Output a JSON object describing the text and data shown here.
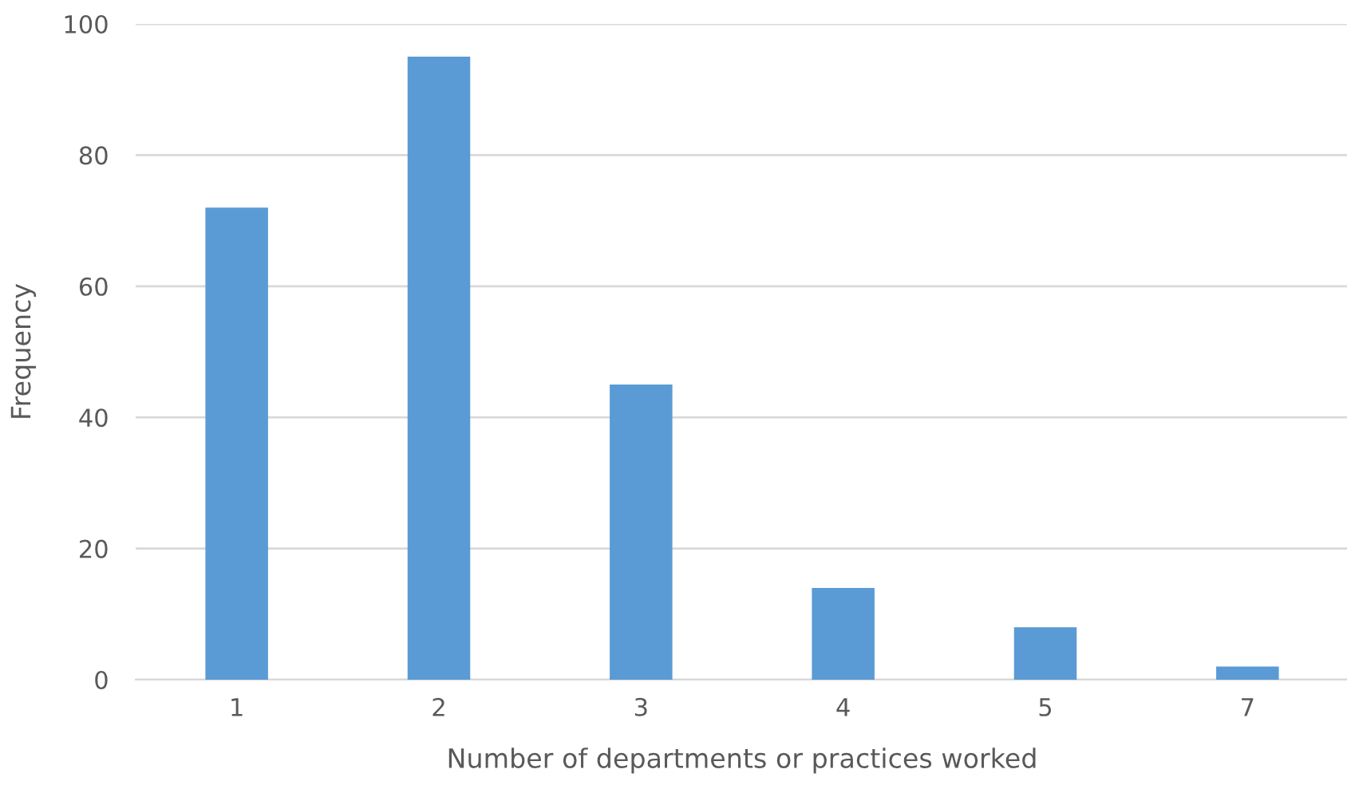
{
  "chart_data": {
    "type": "bar",
    "xlabel": "Number of departments or practices worked",
    "ylabel": "Frequency",
    "categories": [
      "1",
      "2",
      "3",
      "4",
      "5",
      "7"
    ],
    "values": [
      72,
      95,
      45,
      14,
      8,
      2
    ],
    "color": "#5b9bd5",
    "ylim": [
      0,
      100
    ],
    "yticks": [
      0,
      20,
      40,
      60,
      80,
      100
    ],
    "grid": "y",
    "legend": false
  }
}
